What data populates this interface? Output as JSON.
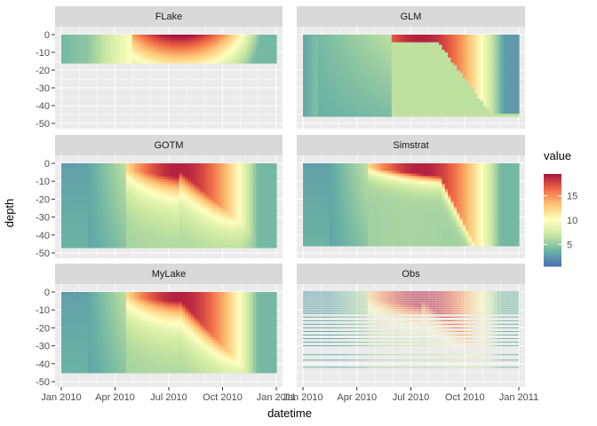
{
  "chart_data": {
    "type": "heatmap",
    "title": "",
    "xlabel": "datetime",
    "ylabel": "depth",
    "x_ticks": [
      "Jan 2010",
      "Apr 2010",
      "Jul 2010",
      "Oct 2010",
      "Jan 2011"
    ],
    "x_range": [
      "2010-01-01",
      "2011-01-01"
    ],
    "y_ticks": [
      0,
      -10,
      -20,
      -30,
      -40,
      -50
    ],
    "y_range": [
      -50,
      0
    ],
    "legend": {
      "title": "value",
      "ticks": [
        5,
        10,
        15
      ],
      "range": [
        0.5,
        19.5
      ],
      "position": "right",
      "colors": [
        "#4a6fb5",
        "#6bb3a4",
        "#c8e6a0",
        "#feffbf",
        "#fdc575",
        "#f06a45",
        "#a8123f"
      ]
    },
    "grid": true,
    "panels": [
      {
        "name": "FLake",
        "bottom_depth": -16,
        "profile": "shallow_mixed"
      },
      {
        "name": "GLM",
        "bottom_depth": -46,
        "profile": "two_layer"
      },
      {
        "name": "GOTM",
        "bottom_depth": -47,
        "profile": "stratified_deep"
      },
      {
        "name": "Simstrat",
        "bottom_depth": -46,
        "profile": "stratified_sharp"
      },
      {
        "name": "MyLake",
        "bottom_depth": -45,
        "profile": "stratified_mylake"
      },
      {
        "name": "Obs",
        "bottom_depth": -42,
        "profile": "observed_lines",
        "obs_depths": [
          0,
          -1,
          -2,
          -3,
          -4,
          -5,
          -6,
          -7,
          -8,
          -9,
          -10,
          -11,
          -12,
          -14,
          -16,
          -18,
          -20,
          -22,
          -24,
          -26,
          -28,
          -30,
          -35,
          -38,
          -42
        ]
      }
    ]
  }
}
